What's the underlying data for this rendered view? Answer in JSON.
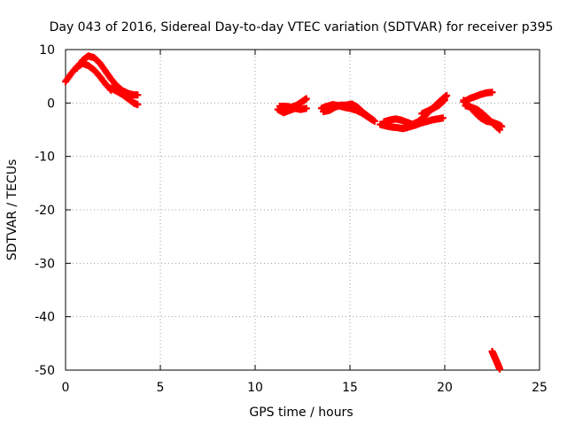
{
  "chart_data": {
    "type": "scatter",
    "title": "Day 043 of 2016, Sidereal Day-to-day VTEC variation (SDTVAR) for receiver p395",
    "xlabel": "GPS time / hours",
    "ylabel": "SDTVAR / TECUs",
    "xlim": [
      0,
      25
    ],
    "ylim": [
      -50,
      10
    ],
    "xticks": [
      0,
      5,
      10,
      15,
      20,
      25
    ],
    "yticks": [
      10,
      0,
      -10,
      -20,
      -30,
      -40,
      -50
    ],
    "xtick_labels": [
      "0",
      "5",
      "10",
      "15",
      "20",
      "25"
    ],
    "ytick_labels": [
      "10",
      "0",
      "-10",
      "-20",
      "-30",
      "-40",
      "-50"
    ],
    "grid": true,
    "marker": "plus",
    "series": [
      {
        "name": "SDTVAR",
        "color": "#ff0000",
        "tracks": [
          {
            "x": [
              0.0,
              0.3,
              0.6,
              0.9,
              1.2,
              1.5,
              1.8,
              2.1,
              2.4
            ],
            "y": [
              4.0,
              5.5,
              6.8,
              7.4,
              7.0,
              6.2,
              5.0,
              3.6,
              2.4
            ]
          },
          {
            "x": [
              0.6,
              0.9,
              1.2,
              1.5,
              1.8,
              2.1,
              2.4,
              2.7,
              3.0,
              3.3,
              3.6,
              3.8
            ],
            "y": [
              6.5,
              8.0,
              8.8,
              8.5,
              7.5,
              6.0,
              4.5,
              3.2,
              2.3,
              1.8,
              1.5,
              1.5
            ]
          },
          {
            "x": [
              2.4,
              2.7,
              3.0,
              3.3,
              3.6,
              3.8
            ],
            "y": [
              2.8,
              2.2,
              1.6,
              0.8,
              0.0,
              -0.3
            ]
          },
          {
            "x": [
              11.2,
              11.5,
              11.8,
              12.1,
              12.4,
              12.7
            ],
            "y": [
              -1.2,
              -1.8,
              -1.4,
              -1.0,
              -1.2,
              -1.0
            ]
          },
          {
            "x": [
              11.3,
              11.6,
              11.9,
              12.2,
              12.5,
              12.7
            ],
            "y": [
              -0.6,
              -0.6,
              -0.8,
              -0.4,
              0.3,
              0.8
            ]
          },
          {
            "x": [
              13.5,
              13.8,
              14.1,
              14.4,
              14.7,
              15.0,
              15.3,
              15.6,
              15.9,
              16.2
            ],
            "y": [
              -1.0,
              -0.6,
              -0.3,
              -0.5,
              -0.8,
              -1.0,
              -1.3,
              -1.8,
              -2.5,
              -3.2
            ]
          },
          {
            "x": [
              13.6,
              13.9,
              14.2,
              14.5,
              14.8,
              15.1,
              15.4,
              15.7,
              16.0,
              16.3
            ],
            "y": [
              -1.6,
              -1.4,
              -0.8,
              -0.4,
              -0.4,
              -0.2,
              -0.8,
              -1.8,
              -2.6,
              -3.4
            ]
          },
          {
            "x": [
              16.6,
              16.9,
              17.2,
              17.5,
              17.8,
              18.1,
              18.4,
              18.7,
              19.0,
              19.3,
              19.6,
              19.9
            ],
            "y": [
              -4.0,
              -4.3,
              -4.5,
              -4.6,
              -4.8,
              -4.5,
              -4.2,
              -3.8,
              -3.5,
              -3.2,
              -3.0,
              -2.8
            ]
          },
          {
            "x": [
              16.8,
              17.1,
              17.4,
              17.7,
              18.0,
              18.3,
              18.6,
              18.9,
              19.2,
              19.5,
              19.8,
              20.1
            ],
            "y": [
              -3.5,
              -3.2,
              -3.0,
              -3.2,
              -3.6,
              -4.0,
              -3.5,
              -2.6,
              -1.5,
              -0.5,
              0.5,
              1.4
            ]
          },
          {
            "x": [
              18.8,
              19.1,
              19.4,
              19.7,
              20.0
            ],
            "y": [
              -2.0,
              -1.5,
              -1.0,
              -0.4,
              0.6
            ]
          },
          {
            "x": [
              21.0,
              21.3,
              21.6,
              21.9,
              22.2,
              22.5
            ],
            "y": [
              0.2,
              0.8,
              1.2,
              1.6,
              1.9,
              2.0
            ]
          },
          {
            "x": [
              21.0,
              21.3,
              21.6,
              21.9,
              22.2,
              22.5,
              22.8,
              23.0
            ],
            "y": [
              0.5,
              -0.6,
              -1.8,
              -2.8,
              -3.4,
              -3.6,
              -4.0,
              -4.4
            ]
          },
          {
            "x": [
              21.1,
              21.4,
              21.7,
              22.0,
              22.3,
              22.6,
              22.9
            ],
            "y": [
              -0.5,
              -0.8,
              -1.2,
              -2.0,
              -3.0,
              -4.0,
              -5.0
            ]
          },
          {
            "x": [
              22.5,
              22.6,
              22.7,
              22.8,
              22.9
            ],
            "y": [
              -46.5,
              -47.3,
              -48.1,
              -48.9,
              -49.8
            ]
          }
        ]
      }
    ]
  }
}
